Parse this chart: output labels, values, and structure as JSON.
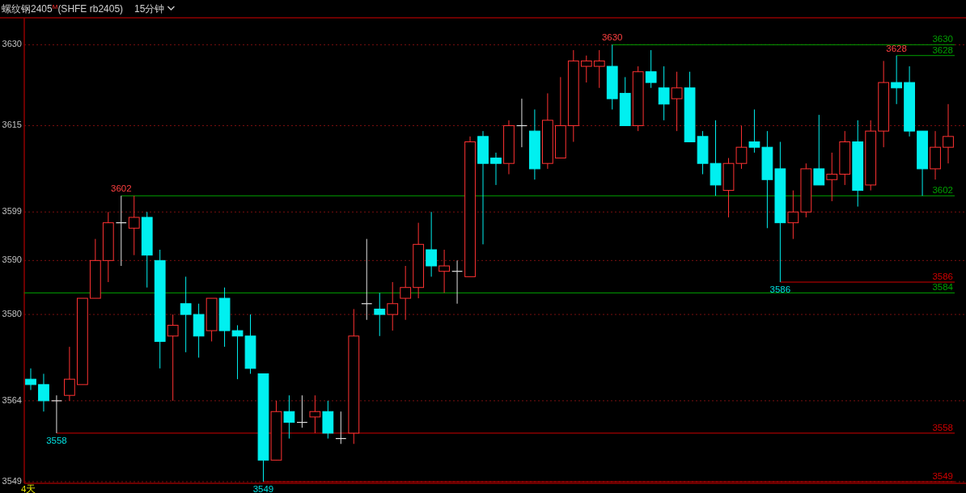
{
  "chart_data": {
    "type": "candlestick",
    "title": "螺纹钢2405$^{M}$(SHFE rb2405)",
    "subtitle": "15分钟",
    "categories": [
      null,
      null,
      null,
      null,
      null,
      null,
      null,
      null,
      null,
      null,
      null,
      null,
      null,
      null,
      null,
      null,
      null,
      null,
      null,
      null,
      null,
      null,
      null,
      null,
      null,
      null,
      null,
      null,
      null,
      null,
      null,
      null,
      null,
      null,
      null,
      null,
      null,
      null,
      null,
      null,
      null,
      null,
      null,
      null,
      null,
      null,
      null,
      null,
      null,
      null,
      null,
      null,
      null,
      null,
      null,
      null,
      null,
      null,
      null,
      null,
      null,
      null,
      null,
      null,
      null,
      null,
      null,
      null,
      null,
      null,
      null,
      null
    ],
    "ohlc": [
      [
        3568,
        3570,
        3566,
        3567
      ],
      [
        3567,
        3569,
        3562,
        3564
      ],
      [
        3564,
        3565,
        3558,
        3564
      ],
      [
        3565,
        3574,
        3564,
        3568
      ],
      [
        3567,
        3583,
        3567,
        3583
      ],
      [
        3583,
        3594,
        3583,
        3590
      ],
      [
        3590,
        3599,
        3586,
        3597
      ],
      [
        3597,
        3602,
        3589,
        3597
      ],
      [
        3596,
        3602,
        3591,
        3598
      ],
      [
        3598,
        3599,
        3585,
        3591
      ],
      [
        3590,
        3592,
        3570,
        3575
      ],
      [
        3576,
        3580,
        3564,
        3578
      ],
      [
        3582,
        3587,
        3573,
        3580
      ],
      [
        3580,
        3582,
        3572,
        3576
      ],
      [
        3577,
        3583,
        3575,
        3583
      ],
      [
        3583,
        3585,
        3574,
        3577
      ],
      [
        3577,
        3578,
        3568,
        3576
      ],
      [
        3576,
        3580,
        3569,
        3570
      ],
      [
        3569,
        3569,
        3549,
        3553
      ],
      [
        3553,
        3564,
        3553,
        3562
      ],
      [
        3562,
        3565,
        3557,
        3560
      ],
      [
        3560,
        3565,
        3559,
        3560
      ],
      [
        3561,
        3565,
        3558,
        3562
      ],
      [
        3562,
        3564,
        3557,
        3558
      ],
      [
        3557,
        3562,
        3556,
        3557
      ],
      [
        3558,
        3581,
        3556,
        3576
      ],
      [
        3582,
        3594,
        3579,
        3582
      ],
      [
        3581,
        3584,
        3576,
        3580
      ],
      [
        3580,
        3586,
        3577,
        3582
      ],
      [
        3583,
        3589,
        3579,
        3585
      ],
      [
        3585,
        3597,
        3583,
        3593
      ],
      [
        3592,
        3599,
        3587,
        3589
      ],
      [
        3588,
        3592,
        3584,
        3589
      ],
      [
        3588,
        3590,
        3582,
        3588
      ],
      [
        3587,
        3613,
        3587,
        3612
      ],
      [
        3613,
        3614,
        3593,
        3608
      ],
      [
        3609,
        3610,
        3604,
        3608
      ],
      [
        3608,
        3616,
        3606,
        3615
      ],
      [
        3615,
        3620,
        3611,
        3615
      ],
      [
        3614,
        3618,
        3605,
        3607
      ],
      [
        3608,
        3621,
        3607,
        3616
      ],
      [
        3609,
        3624,
        3609,
        3615
      ],
      [
        3615,
        3629,
        3612,
        3627
      ],
      [
        3626,
        3628,
        3623,
        3627
      ],
      [
        3626,
        3629,
        3622,
        3627
      ],
      [
        3626,
        3630,
        3618,
        3620
      ],
      [
        3621,
        3624,
        3615,
        3615
      ],
      [
        3615,
        3626,
        3614,
        3625
      ],
      [
        3625,
        3629,
        3622,
        3623
      ],
      [
        3622,
        3626,
        3616,
        3619
      ],
      [
        3620,
        3625,
        3614,
        3622
      ],
      [
        3622,
        3625,
        3612,
        3612
      ],
      [
        3613,
        3614,
        3606,
        3608
      ],
      [
        3608,
        3616,
        3602,
        3604
      ],
      [
        3603,
        3609,
        3598,
        3608
      ],
      [
        3608,
        3615,
        3607,
        3611
      ],
      [
        3612,
        3618,
        3610,
        3611
      ],
      [
        3611,
        3614,
        3596,
        3605
      ],
      [
        3607,
        3612,
        3586,
        3597
      ],
      [
        3597,
        3603,
        3594,
        3599
      ],
      [
        3599,
        3608,
        3598,
        3607
      ],
      [
        3607,
        3617,
        3604,
        3604
      ],
      [
        3605,
        3610,
        3601,
        3606
      ],
      [
        3606,
        3614,
        3604,
        3612
      ],
      [
        3612,
        3616,
        3600,
        3603
      ],
      [
        3604,
        3616,
        3603,
        3614
      ],
      [
        3614,
        3627,
        3611,
        3623
      ],
      [
        3623,
        3628,
        3619,
        3622
      ],
      [
        3623,
        3626,
        3613,
        3614
      ],
      [
        3614,
        3614,
        3602,
        3607
      ],
      [
        3607,
        3614,
        3605,
        3611
      ],
      [
        3611,
        3619,
        3608,
        3613
      ]
    ],
    "colors": [
      "#00f0f0",
      "#00f0f0",
      "#e0e0e0",
      "#ff3232",
      "#ff3232",
      "#ff3232",
      "#ff3232",
      "#e0e0e0",
      "#ff3232",
      "#00f0f0",
      "#00f0f0",
      "#ff3232",
      "#00f0f0",
      "#00f0f0",
      "#ff3232",
      "#00f0f0",
      "#00f0f0",
      "#00f0f0",
      "#00f0f0",
      "#ff3232",
      "#00f0f0",
      "#e0e0e0",
      "#ff3232",
      "#00f0f0",
      "#e0e0e0",
      "#ff3232",
      "#e0e0e0",
      "#00f0f0",
      "#ff3232",
      "#ff3232",
      "#ff3232",
      "#00f0f0",
      "#ff3232",
      "#e0e0e0",
      "#ff3232",
      "#00f0f0",
      "#00f0f0",
      "#ff3232",
      "#e0e0e0",
      "#00f0f0",
      "#ff3232",
      "#ff3232",
      "#ff3232",
      "#ff3232",
      "#ff3232",
      "#00f0f0",
      "#00f0f0",
      "#ff3232",
      "#00f0f0",
      "#00f0f0",
      "#ff3232",
      "#00f0f0",
      "#00f0f0",
      "#00f0f0",
      "#ff3232",
      "#ff3232",
      "#00f0f0",
      "#00f0f0",
      "#00f0f0",
      "#ff3232",
      "#ff3232",
      "#00f0f0",
      "#ff3232",
      "#ff3232",
      "#00f0f0",
      "#ff3232",
      "#ff3232",
      "#00f0f0",
      "#00f0f0",
      "#00f0f0",
      "#ff3232",
      "#ff3232"
    ],
    "ylim": [
      3548.7,
      3635
    ],
    "yticks": [
      3630,
      3615,
      3599,
      3590,
      3580,
      3564,
      3549
    ],
    "grid": "y",
    "tick_labels": "y",
    "ref_lines": [
      {
        "axis": "y",
        "value": 3630,
        "label": "3630",
        "color": "#00a000"
      },
      {
        "axis": "y",
        "value": 3628,
        "label": "3628",
        "color": "#00a000"
      },
      {
        "axis": "y",
        "value": 3602,
        "label": "3602",
        "color": "#00a000"
      },
      {
        "axis": "y",
        "value": 3584,
        "label": "3584",
        "color": "#00a000"
      },
      {
        "axis": "y",
        "value": 3586,
        "label": "3586",
        "color": "#d00000"
      },
      {
        "axis": "y",
        "value": 3558,
        "label": "3558",
        "color": "#d00000"
      },
      {
        "axis": "y",
        "value": 3549,
        "label": "3549",
        "color": "#d00000"
      }
    ],
    "annotations": [
      {
        "text": "3602",
        "y": 3602
      },
      {
        "text": "3630",
        "y": 3630
      },
      {
        "text": "3628",
        "y": 3628
      },
      {
        "text": "3558",
        "y": 3558
      },
      {
        "text": "3549",
        "y": 3549
      },
      {
        "text": "3586",
        "y": 3586
      },
      "4天"
    ]
  }
}
